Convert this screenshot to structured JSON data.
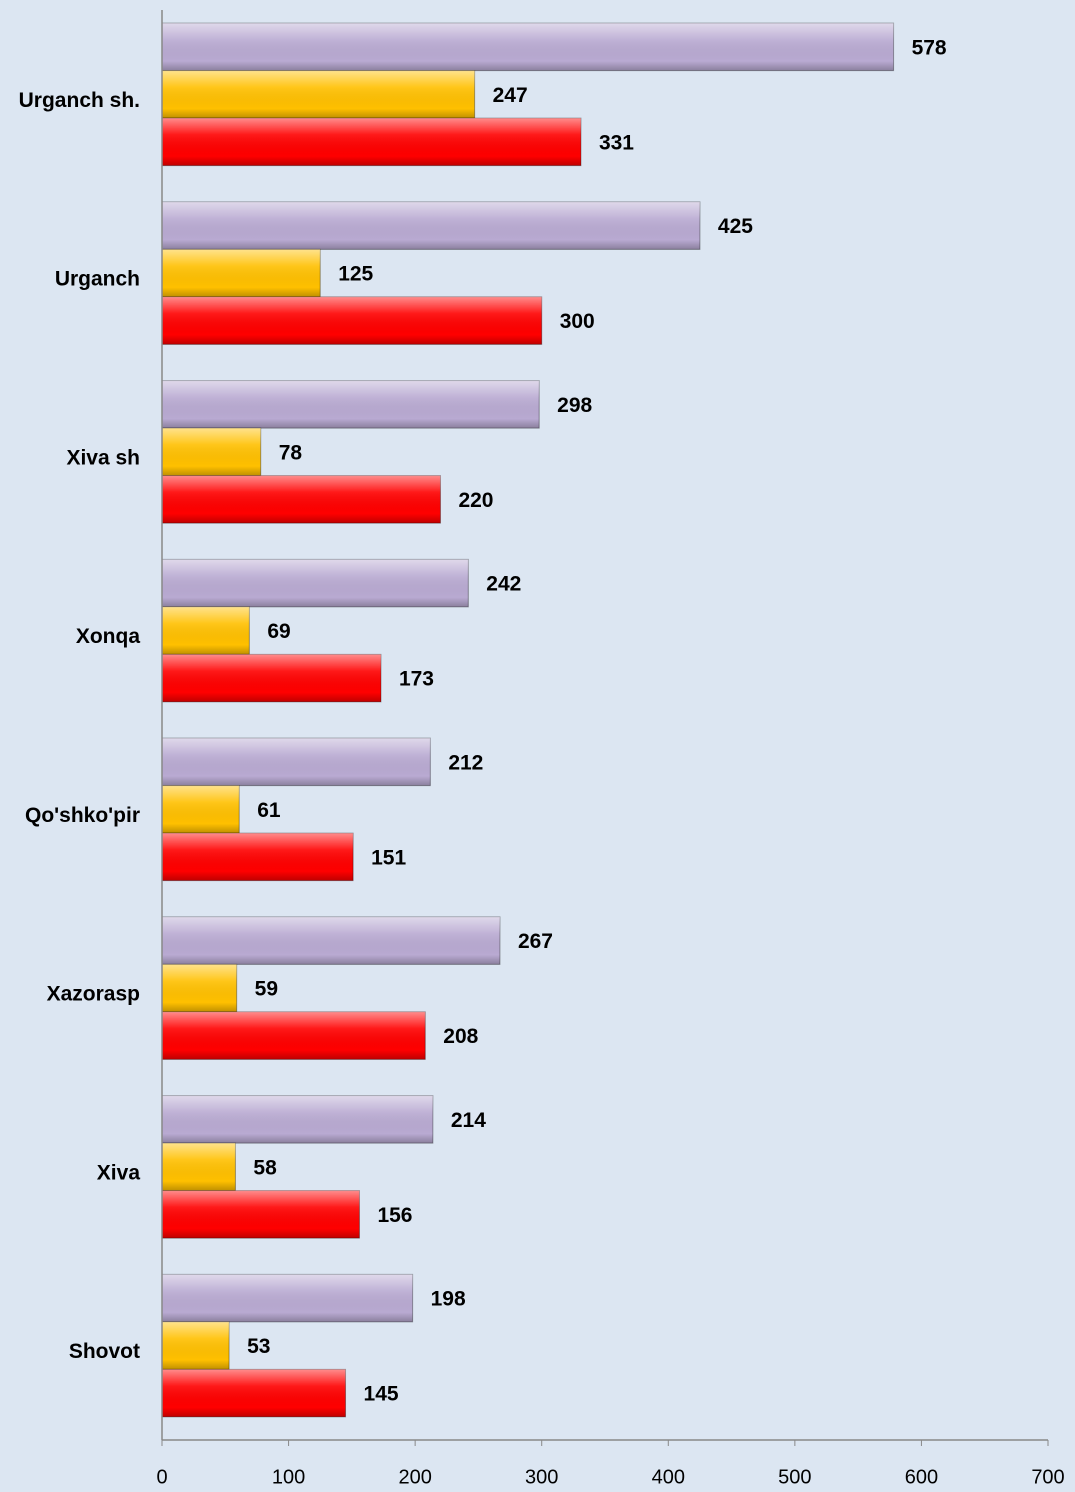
{
  "chart_data": {
    "type": "barh",
    "categories": [
      "Urganch sh.",
      "Urganch",
      "Xiva sh",
      "Xonqa",
      "Qo'shko'pir",
      "Xazorasp",
      "Xiva",
      "Shovot"
    ],
    "series": [
      {
        "color": "#b9aad2",
        "values": [
          578,
          425,
          298,
          242,
          212,
          267,
          214,
          198
        ]
      },
      {
        "color": "#ffc000",
        "values": [
          247,
          125,
          78,
          69,
          61,
          59,
          58,
          53
        ]
      },
      {
        "color": "#ff0000",
        "values": [
          331,
          300,
          220,
          173,
          151,
          208,
          156,
          145
        ]
      }
    ],
    "xlim": [
      0,
      700
    ],
    "xticks": [
      0,
      100,
      200,
      300,
      400,
      500,
      600,
      700
    ]
  }
}
